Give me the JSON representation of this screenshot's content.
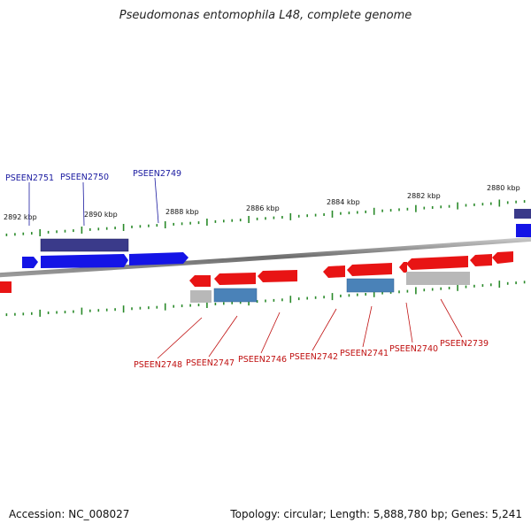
{
  "title": "Pseudomonas entomophila L48, complete genome",
  "footer": {
    "accession": "Accession: NC_008027",
    "summary": "Topology: circular; Length: 5,888,780 bp; Genes: 5,241"
  },
  "scale_ticks": [
    "2892 kbp",
    "2890 kbp",
    "2888 kbp",
    "2886 kbp",
    "2884 kbp",
    "2882 kbp",
    "2880 kbp"
  ],
  "forward_labels": [
    "PSEEN2751",
    "PSEEN2750",
    "PSEEN2749"
  ],
  "reverse_labels": [
    "PSEEN2748",
    "PSEEN2747",
    "PSEEN2746",
    "PSEEN2742",
    "PSEEN2741",
    "PSEEN2740",
    "PSEEN2739"
  ],
  "colors": {
    "forward_gene": "#1414e6",
    "forward_feature": "#3a3a8a",
    "reverse_gene": "#e81414",
    "reverse_feature": "#4a82b8",
    "pseudo_feature": "#b8b8b8",
    "backbone": "#808080",
    "tick": "#2a8a2a",
    "forward_label": "#1a1aa0",
    "reverse_label": "#c01010"
  }
}
